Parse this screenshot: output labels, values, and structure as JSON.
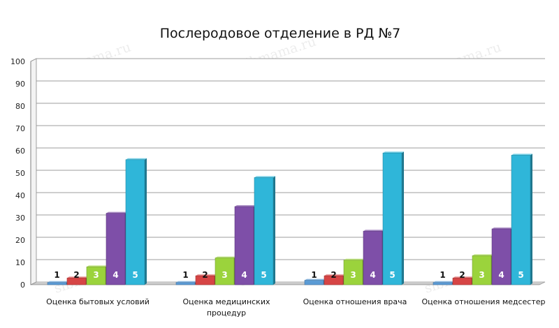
{
  "watermark": "sibmama.ru",
  "chart_data": {
    "type": "bar",
    "title": "Послеродовое отделение в РД №7",
    "xlabel": "",
    "ylabel": "",
    "ylim": [
      0,
      100
    ],
    "yticks": [
      0,
      10,
      20,
      30,
      40,
      50,
      60,
      70,
      80,
      90,
      100
    ],
    "grid": true,
    "categories": [
      [
        "Оценка бытовых условий"
      ],
      [
        "Оценка медицинских",
        "процедур"
      ],
      [
        "Оценка отношения врача"
      ],
      [
        "Оценка отношения медсестер"
      ]
    ],
    "series": [
      {
        "name": "1",
        "color": "#5b9bd5",
        "values": [
          1,
          1,
          2,
          1
        ]
      },
      {
        "name": "2",
        "color": "#d64545",
        "values": [
          3,
          4,
          4,
          3
        ]
      },
      {
        "name": "3",
        "color": "#9bd33c",
        "values": [
          8,
          12,
          11,
          13
        ]
      },
      {
        "name": "4",
        "color": "#7e4fa8",
        "values": [
          32,
          35,
          24,
          25
        ]
      },
      {
        "name": "5",
        "color": "#2fb6d9",
        "values": [
          56,
          48,
          59,
          58
        ]
      }
    ]
  }
}
